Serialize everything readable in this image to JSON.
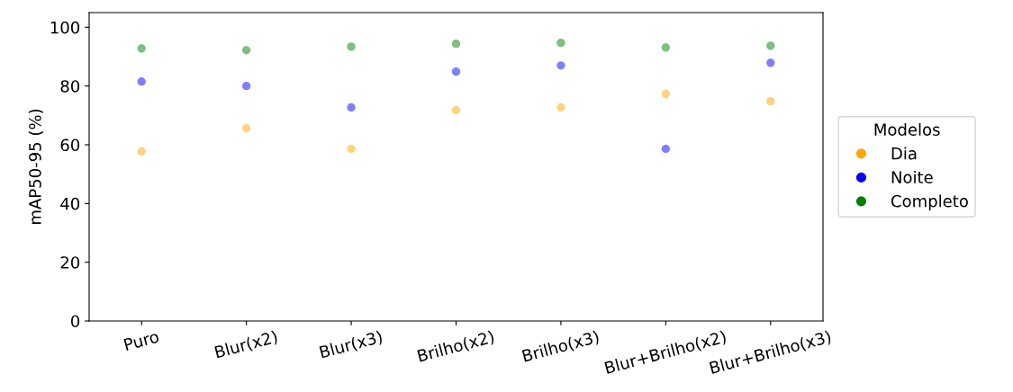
{
  "chart_data": {
    "type": "scatter",
    "ylabel": "mAP50-95 (%)",
    "legend_title": "Modelos",
    "legend": "right",
    "marker": "circle",
    "grid": false,
    "categories": [
      "Puro",
      "Blur(x2)",
      "Blur(x3)",
      "Brilho(x2)",
      "Brilho(x3)",
      "Blur+Brilho(x2)",
      "Blur+Brilho(x3)"
    ],
    "ylim": [
      0,
      105
    ],
    "yticks": [
      0,
      20,
      40,
      60,
      80,
      100
    ],
    "series": [
      {
        "name": "Dia",
        "color": "#ffa500",
        "values": [
          57.7,
          65.6,
          58.6,
          71.8,
          72.7,
          77.3,
          74.8
        ]
      },
      {
        "name": "Noite",
        "color": "#0000ff",
        "values": [
          81.5,
          80.0,
          72.7,
          84.9,
          87.0,
          58.6,
          87.9
        ]
      },
      {
        "name": "Completo",
        "color": "#008000",
        "values": [
          92.8,
          92.2,
          93.4,
          94.4,
          94.7,
          93.1,
          93.7
        ]
      }
    ]
  }
}
